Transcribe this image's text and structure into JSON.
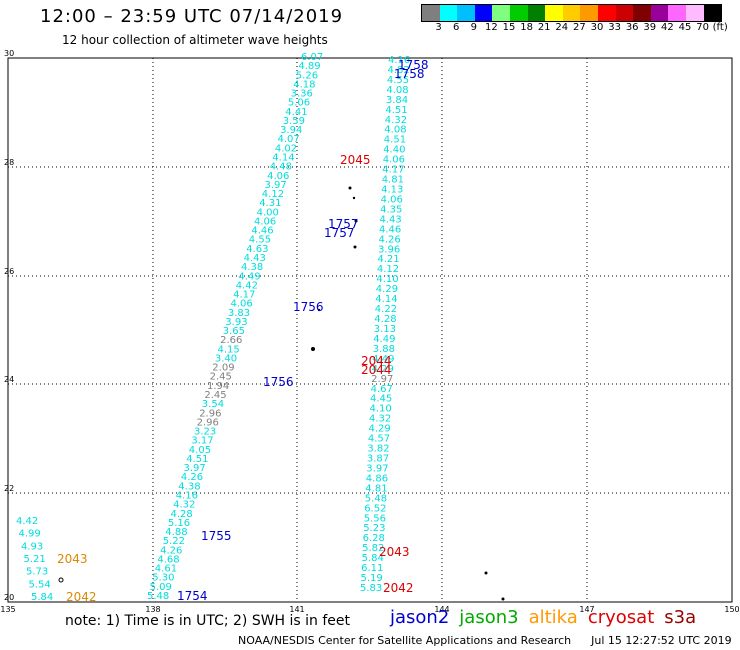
{
  "header": {
    "title": "12:00 – 23:59 UTC 07/14/2019",
    "subtitle": "12 hour collection of altimeter wave heights"
  },
  "colorbar": {
    "colors": [
      "#7f7f7f",
      "#00ffff",
      "#00bfff",
      "#0000ff",
      "#7fff7f",
      "#00cc00",
      "#007f00",
      "#ffff00",
      "#ffcc00",
      "#ff9900",
      "#ff0000",
      "#cc0000",
      "#7f0000",
      "#990099",
      "#ff66ff",
      "#ffbbff",
      "#000000"
    ],
    "labels": [
      "3",
      "6",
      "9",
      "12",
      "15",
      "18",
      "21",
      "24",
      "27",
      "30",
      "33",
      "36",
      "39",
      "42",
      "45",
      "70",
      "(ft)"
    ]
  },
  "map": {
    "lon_labels": [
      "135",
      "138",
      "141",
      "144",
      "147",
      "150"
    ],
    "lat_labels": [
      "20",
      "22",
      "24",
      "26",
      "28",
      "30"
    ],
    "tracks": [
      {
        "mission": "jason2",
        "color": "#00dddd",
        "labels": [
          "4.42",
          "4.99",
          "4.93",
          "5.21",
          "5.73",
          "5.54",
          "5.84"
        ]
      },
      {
        "mission": "jason2",
        "color": "#00dddd",
        "labels": [
          "5.48",
          "5.09",
          "5.30",
          "4.61",
          "4.68",
          "4.26",
          "5.22",
          "4.88",
          "5.16",
          "4.28",
          "4.32",
          "4.16",
          "4.38",
          "4.26",
          "3.97",
          "4.51",
          "4.05",
          "3.17",
          "3.23",
          "2.96",
          "2.96",
          "3.54",
          "2.45",
          "1.94",
          "2.45",
          "2.09",
          "3.40",
          "4.15",
          "2.66",
          "3.65",
          "3.93",
          "3.83",
          "4.06",
          "4.17",
          "4.42",
          "4.49",
          "4.38",
          "4.43",
          "4.63",
          "4.55",
          "4.46",
          "4.06",
          "4.00",
          "4.31",
          "4.12",
          "3.97",
          "4.06",
          "4.48",
          "4.14",
          "4.02",
          "4.07",
          "3.94",
          "3.59",
          "4.41",
          "5.06",
          "3.36",
          "4.18",
          "5.26",
          "4.89",
          "6.07"
        ]
      },
      {
        "mission": "jason2",
        "color": "#00dddd",
        "labels": [
          "4.16",
          "4.82",
          "4.55",
          "4.08",
          "3.84",
          "4.51",
          "4.32",
          "4.08",
          "4.51",
          "4.40",
          "4.06",
          "4.17",
          "4.81",
          "4.13",
          "4.06",
          "4.35",
          "4.43",
          "4.46",
          "4.26",
          "3.96",
          "4.21",
          "4.12",
          "4.10",
          "4.29",
          "4.14",
          "4.22",
          "4.28",
          "3.13",
          "4.49",
          "3.88",
          "4.49",
          "4.29",
          "2.97",
          "4.67",
          "4.45",
          "4.10",
          "4.32",
          "4.29",
          "4.57",
          "3.82",
          "3.87",
          "3.97",
          "4.86",
          "4.81",
          "5.48",
          "6.52",
          "5.56",
          "5.23",
          "6.28",
          "5.82",
          "5.84",
          "6.11",
          "5.19",
          "5.83"
        ]
      }
    ],
    "times": [
      {
        "text": "1758",
        "color": "#0000cc"
      },
      {
        "text": "1758",
        "color": "#0000cc"
      },
      {
        "text": "2045",
        "color": "#dd0000"
      },
      {
        "text": "1757",
        "color": "#0000cc"
      },
      {
        "text": "1757",
        "color": "#0000cc"
      },
      {
        "text": "1756",
        "color": "#0000cc"
      },
      {
        "text": "2044",
        "color": "#dd0000"
      },
      {
        "text": "2044",
        "color": "#dd0000"
      },
      {
        "text": "1756",
        "color": "#0000cc"
      },
      {
        "text": "1755",
        "color": "#0000cc"
      },
      {
        "text": "2043",
        "color": "#dd8800"
      },
      {
        "text": "2043",
        "color": "#dd0000"
      },
      {
        "text": "2042",
        "color": "#dd8800"
      },
      {
        "text": "2042",
        "color": "#dd0000"
      },
      {
        "text": "1754",
        "color": "#0000cc"
      }
    ]
  },
  "footer": {
    "note": "note: 1) Time is in UTC; 2) SWH is in feet",
    "missions": [
      {
        "name": "jason2",
        "color": "#0000cc"
      },
      {
        "name": "jason3",
        "color": "#00aa00"
      },
      {
        "name": "altika",
        "color": "#ff9900"
      },
      {
        "name": "cryosat",
        "color": "#dd0000"
      },
      {
        "name": "s3a",
        "color": "#990000"
      }
    ],
    "credit_org": "NOAA/NESDIS Center for Satellite Applications and Research",
    "credit_time": "Jul 15 12:27:52 UTC 2019"
  }
}
